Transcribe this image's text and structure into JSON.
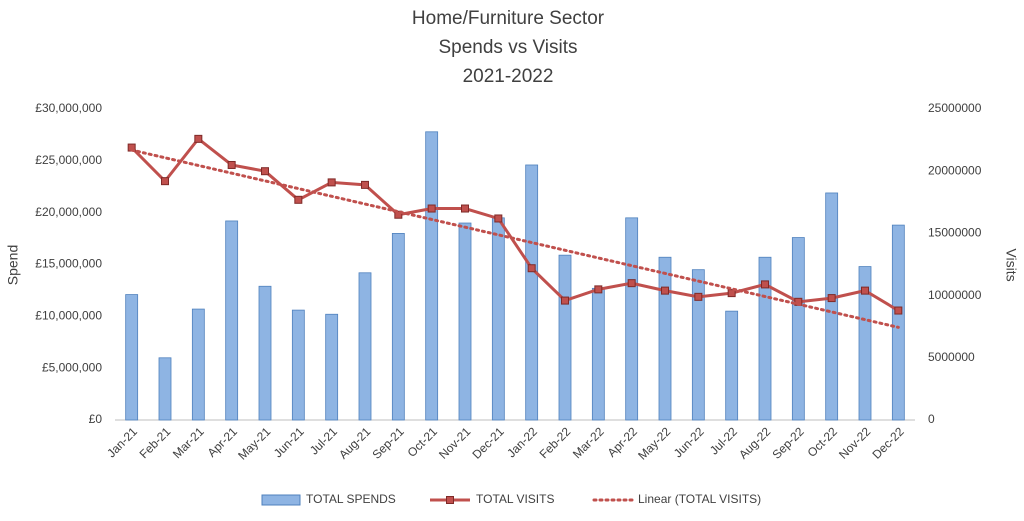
{
  "chart_data": {
    "type": "bar-line",
    "title": [
      "Home/Furniture Sector",
      "Spends vs Visits",
      "2021-2022"
    ],
    "ylabel": "Spend",
    "y2label": "Visits",
    "categories": [
      "Jan-21",
      "Feb-21",
      "Mar-21",
      "Apr-21",
      "May-21",
      "Jun-21",
      "Jul-21",
      "Aug-21",
      "Sep-21",
      "Oct-21",
      "Nov-21",
      "Dec-21",
      "Jan-22",
      "Feb-22",
      "Mar-22",
      "Apr-22",
      "May-22",
      "Jun-22",
      "Jul-22",
      "Aug-22",
      "Sep-22",
      "Oct-22",
      "Nov-22",
      "Dec-22"
    ],
    "series": [
      {
        "name": "TOTAL SPENDS",
        "type": "bar",
        "color": "#8eb4e3",
        "values": [
          12100000,
          6000000,
          10700000,
          19200000,
          12900000,
          10600000,
          10200000,
          14200000,
          18000000,
          27800000,
          19000000,
          19500000,
          24600000,
          15900000,
          12700000,
          19500000,
          15700000,
          14500000,
          10500000,
          15700000,
          17600000,
          21900000,
          14800000,
          18800000
        ]
      },
      {
        "name": "TOTAL VISITS",
        "type": "line",
        "axis": "y2",
        "color": "#c0504d",
        "values": [
          21900000,
          19200000,
          22600000,
          20500000,
          20000000,
          17700000,
          19100000,
          18900000,
          16500000,
          17000000,
          17000000,
          16200000,
          12200000,
          9600000,
          10500000,
          11000000,
          10400000,
          9900000,
          10200000,
          10900000,
          9500000,
          9800000,
          10400000,
          8800000
        ]
      }
    ],
    "trendline": {
      "name": "Linear (TOTAL VISITS)",
      "fit": "linear",
      "of": 1,
      "color": "#c0504d"
    },
    "ylim": [
      0,
      30000000
    ],
    "yticks": [
      {
        "value": 0,
        "label": "£0"
      },
      {
        "value": 5000000,
        "label": "£5,000,000"
      },
      {
        "value": 10000000,
        "label": "£10,000,000"
      },
      {
        "value": 15000000,
        "label": "£15,000,000"
      },
      {
        "value": 20000000,
        "label": "£20,000,000"
      },
      {
        "value": 25000000,
        "label": "£25,000,000"
      },
      {
        "value": 30000000,
        "label": "£30,000,000"
      }
    ],
    "y2lim": [
      0,
      25000000
    ],
    "y2ticks": [
      0,
      5000000,
      10000000,
      15000000,
      20000000,
      25000000
    ],
    "grid": false
  }
}
